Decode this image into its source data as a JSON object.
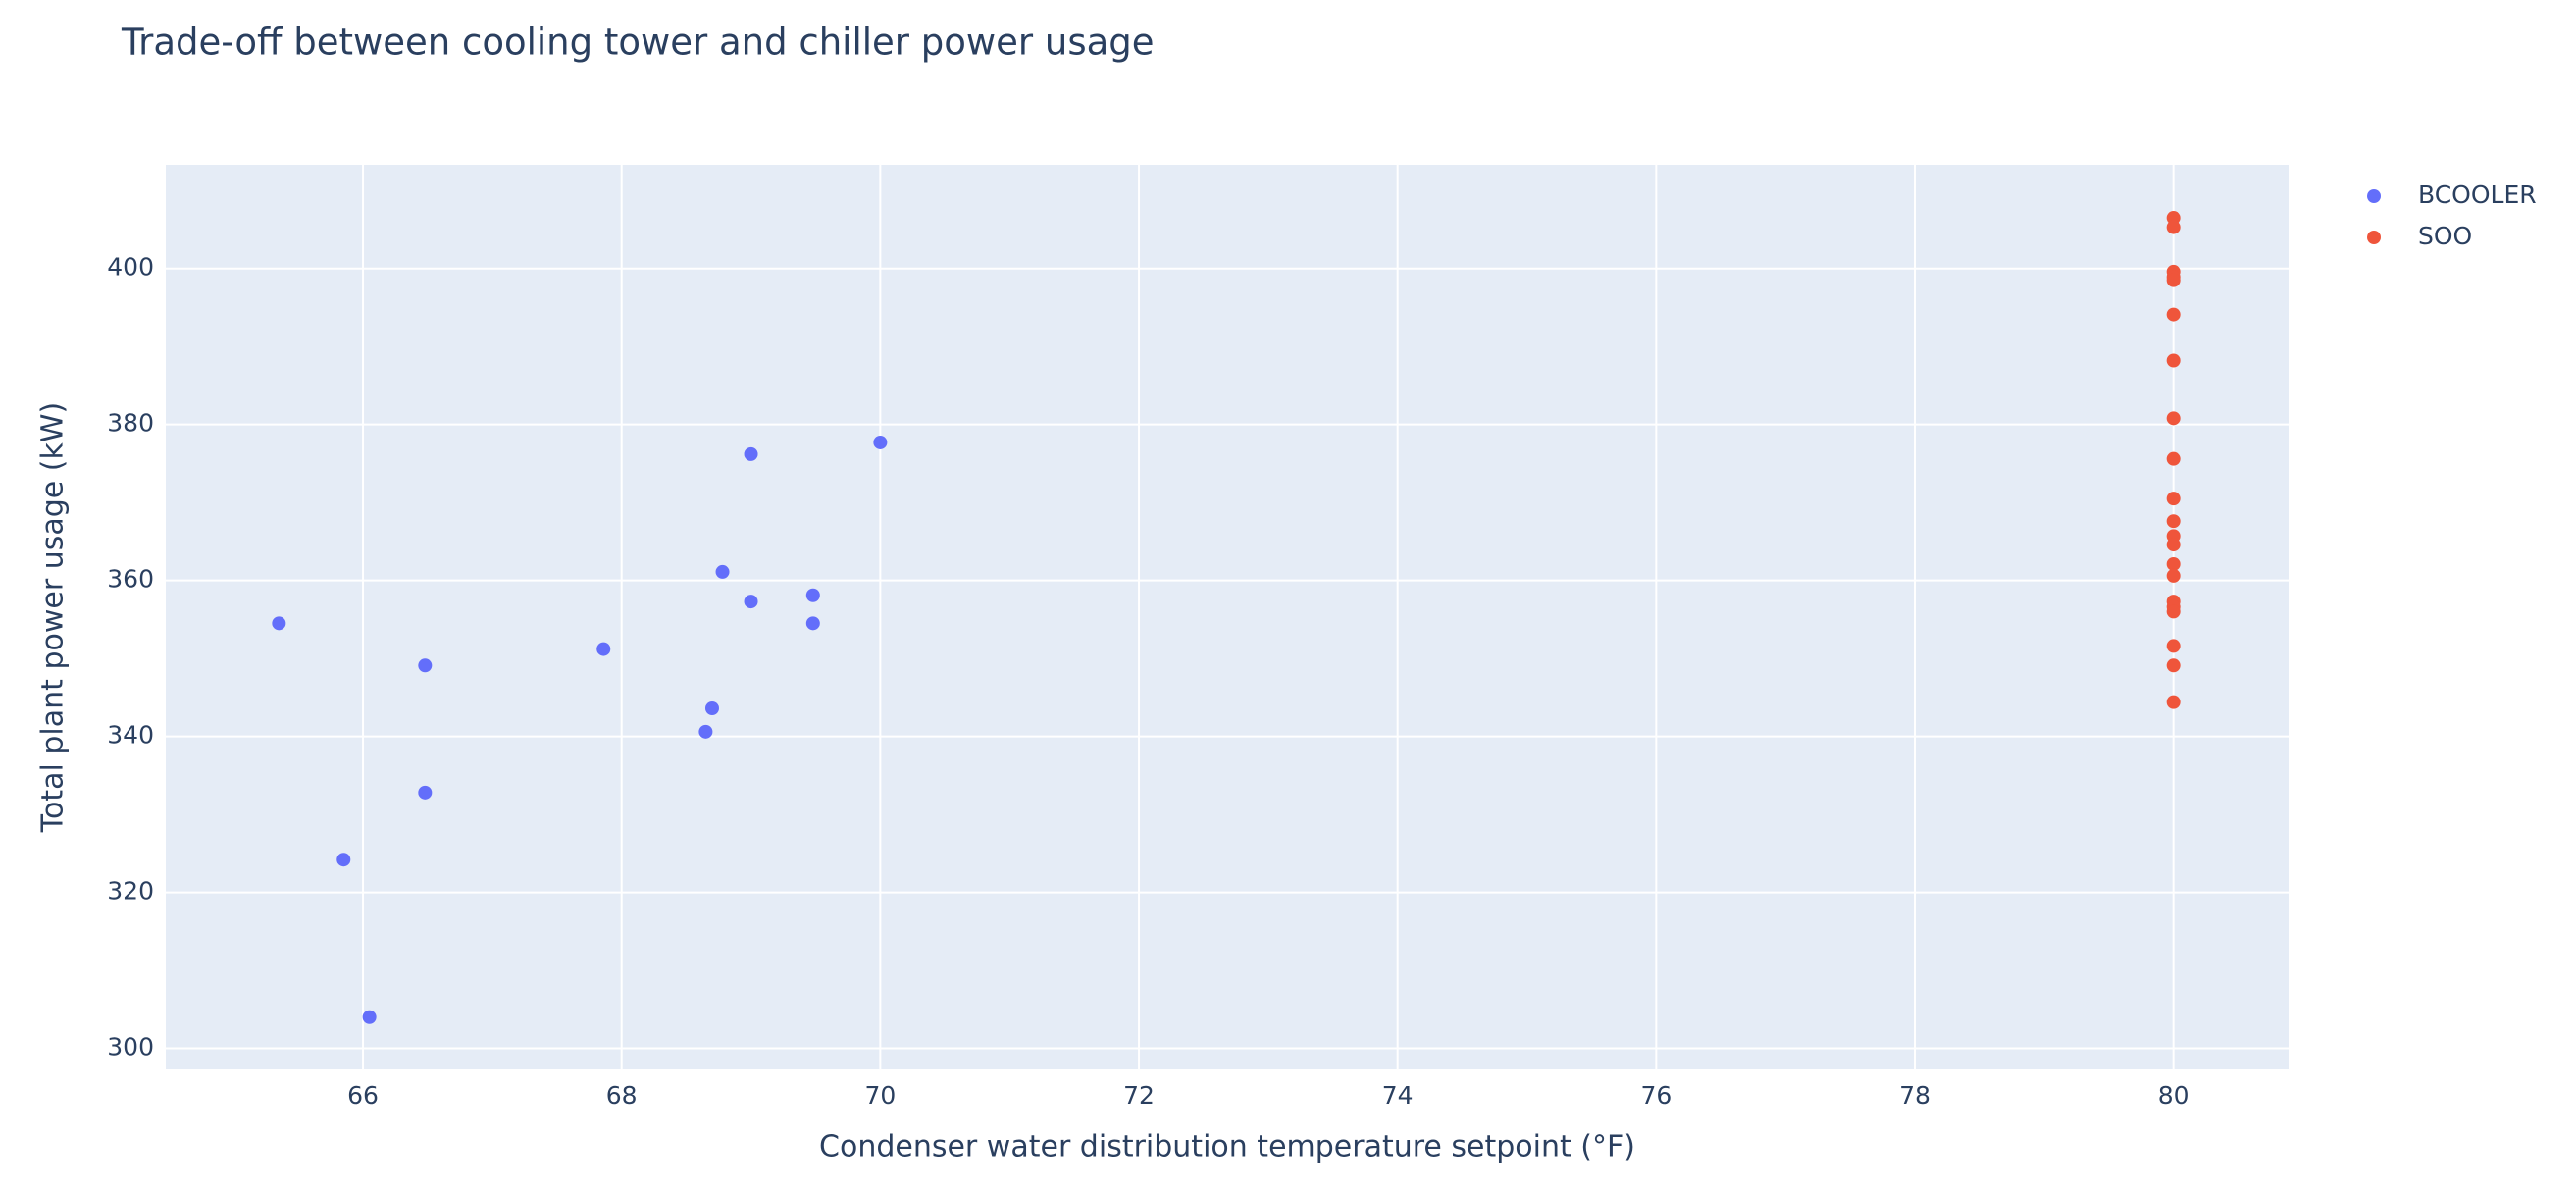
{
  "chart_data": {
    "type": "scatter",
    "title": "Trade-off between cooling tower and chiller power usage",
    "x_label": "Condenser water distribution temperature setpoint (°F)",
    "y_label": "Total plant power usage (kW)",
    "xlim": [
      64.475,
      80.89
    ],
    "ylim": [
      297.3,
      413.3
    ],
    "xticks": [
      66,
      68,
      70,
      72,
      74,
      76,
      78,
      80
    ],
    "yticks": [
      300,
      320,
      340,
      360,
      380,
      400
    ],
    "grid": true,
    "legend": "top-right",
    "series": [
      {
        "name": "BCOOLER",
        "color": "#636efa",
        "x": [
          65.35,
          65.85,
          66.05,
          66.48,
          66.48,
          67.86,
          68.65,
          68.7,
          68.78,
          69,
          69,
          69.48,
          69.48,
          70
        ],
        "values": [
          354.5,
          324.2,
          304.0,
          349.1,
          332.8,
          351.2,
          340.6,
          343.6,
          361.1,
          376.2,
          357.3,
          358.1,
          354.5,
          377.7
        ]
      },
      {
        "name": "SOO",
        "color": "#EF553B",
        "x": [
          80,
          80,
          80,
          80,
          80,
          80,
          80,
          80,
          80,
          80,
          80,
          80,
          80,
          80,
          80,
          80,
          80,
          80,
          80,
          80,
          80
        ],
        "values": [
          406.5,
          405.3,
          399.6,
          398.9,
          398.5,
          394.1,
          388.2,
          380.8,
          375.6,
          370.5,
          367.6,
          365.7,
          364.6,
          362.1,
          360.6,
          357.3,
          356.6,
          356.0,
          351.6,
          349.1,
          344.4
        ]
      }
    ]
  }
}
